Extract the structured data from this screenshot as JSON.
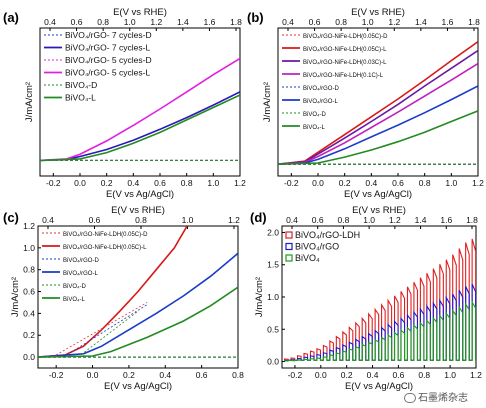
{
  "watermark": "石墨烯杂志",
  "chart_data": [
    {
      "panel": "(a)",
      "type": "line",
      "xlabel": "E(V vs Ag/AgCl)",
      "x2label": "E(V vs RHE)",
      "ylabel": "J/mA/cm²",
      "xlim": [
        -0.3,
        1.2
      ],
      "ylim": [
        -0.2,
        1.7
      ],
      "xticks": [
        -0.2,
        0.0,
        0.2,
        0.4,
        0.6,
        0.8,
        1.0,
        1.2
      ],
      "x2ticks": [
        0.4,
        0.6,
        0.8,
        1.0,
        1.2,
        1.4,
        1.6,
        1.8
      ],
      "legend_position": "top-left",
      "series": [
        {
          "name": "BiVO₄/rGO- 7 cycles-D",
          "color": "#1a3cc8",
          "dash": true,
          "points": [
            [
              -0.3,
              0.0
            ],
            [
              1.2,
              0.0
            ]
          ]
        },
        {
          "name": "BiVO₄/rGO- 7 cycles-L",
          "color": "#2a18b8",
          "dash": false,
          "points": [
            [
              -0.3,
              0.0
            ],
            [
              -0.1,
              0.01
            ],
            [
              0.0,
              0.05
            ],
            [
              0.2,
              0.14
            ],
            [
              0.4,
              0.26
            ],
            [
              0.6,
              0.4
            ],
            [
              0.8,
              0.55
            ],
            [
              1.0,
              0.71
            ],
            [
              1.2,
              0.88
            ]
          ]
        },
        {
          "name": "BiVO₄/rGO- 5 cycles-D",
          "color": "#e020e0",
          "dash": true,
          "points": [
            [
              -0.3,
              0.0
            ],
            [
              1.2,
              0.0
            ]
          ]
        },
        {
          "name": "BiVO₄/rGO- 5 cycles-L",
          "color": "#e020e0",
          "dash": false,
          "points": [
            [
              -0.3,
              0.0
            ],
            [
              -0.1,
              0.02
            ],
            [
              0.0,
              0.08
            ],
            [
              0.2,
              0.25
            ],
            [
              0.4,
              0.45
            ],
            [
              0.6,
              0.66
            ],
            [
              0.8,
              0.88
            ],
            [
              1.0,
              1.1
            ],
            [
              1.2,
              1.31
            ]
          ]
        },
        {
          "name": "BiVO₄-D",
          "color": "#228b22",
          "dash": true,
          "points": [
            [
              -0.3,
              0.0
            ],
            [
              1.2,
              0.0
            ]
          ]
        },
        {
          "name": "BiVO₄-L",
          "color": "#228b22",
          "dash": false,
          "points": [
            [
              -0.3,
              0.0
            ],
            [
              0.0,
              0.02
            ],
            [
              0.2,
              0.1
            ],
            [
              0.4,
              0.22
            ],
            [
              0.6,
              0.36
            ],
            [
              0.8,
              0.52
            ],
            [
              1.0,
              0.68
            ],
            [
              1.2,
              0.84
            ]
          ]
        }
      ]
    },
    {
      "panel": "(b)",
      "type": "line",
      "xlabel": "E(V vs Ag/AgCl)",
      "x2label": "E(V vs RHE)",
      "ylabel": "J/mA/cm²",
      "xlim": [
        -0.3,
        1.2
      ],
      "ylim": [
        -0.2,
        2.3
      ],
      "xticks": [
        -0.2,
        0.0,
        0.2,
        0.4,
        0.6,
        0.8,
        1.0,
        1.2
      ],
      "x2ticks": [
        0.4,
        0.6,
        0.8,
        1.0,
        1.2,
        1.4,
        1.6,
        1.8
      ],
      "legend_position": "top-left",
      "series": [
        {
          "name": "BiVO₄/rGO-NiFe-LDH(0.05C)-D",
          "color": "#e03030",
          "dash": true,
          "points": [
            [
              -0.3,
              0.0
            ],
            [
              1.2,
              0.0
            ]
          ]
        },
        {
          "name": "BiVO₄/rGO-NiFe-LDH(0.05C)-L",
          "color": "#d81818",
          "dash": false,
          "points": [
            [
              -0.3,
              0.0
            ],
            [
              -0.1,
              0.05
            ],
            [
              0.0,
              0.2
            ],
            [
              0.2,
              0.5
            ],
            [
              0.4,
              0.8
            ],
            [
              0.6,
              1.1
            ],
            [
              0.8,
              1.42
            ],
            [
              1.0,
              1.75
            ],
            [
              1.2,
              2.07
            ]
          ]
        },
        {
          "name": "BiVO₄/rGO-NiFe-LDH(0.03C)-L",
          "color": "#6a1aa0",
          "dash": false,
          "points": [
            [
              -0.3,
              0.0
            ],
            [
              -0.1,
              0.04
            ],
            [
              0.0,
              0.17
            ],
            [
              0.2,
              0.44
            ],
            [
              0.4,
              0.72
            ],
            [
              0.6,
              1.01
            ],
            [
              0.8,
              1.32
            ],
            [
              1.0,
              1.62
            ],
            [
              1.2,
              1.92
            ]
          ]
        },
        {
          "name": "BiVO₄/rGO-NiFe-LDH(0.1C)-L",
          "color": "#c020c0",
          "dash": false,
          "points": [
            [
              -0.3,
              0.0
            ],
            [
              -0.1,
              0.03
            ],
            [
              0.0,
              0.13
            ],
            [
              0.2,
              0.36
            ],
            [
              0.4,
              0.62
            ],
            [
              0.6,
              0.88
            ],
            [
              0.8,
              1.15
            ],
            [
              1.0,
              1.42
            ],
            [
              1.2,
              1.7
            ]
          ]
        },
        {
          "name": "BiVO₄/rGO-D",
          "color": "#1a3cc8",
          "dash": true,
          "points": [
            [
              -0.3,
              0.0
            ],
            [
              1.2,
              0.0
            ]
          ]
        },
        {
          "name": "BiVO₄/rGO-L",
          "color": "#1a3cc8",
          "dash": false,
          "points": [
            [
              -0.3,
              0.0
            ],
            [
              -0.1,
              0.02
            ],
            [
              0.0,
              0.08
            ],
            [
              0.2,
              0.26
            ],
            [
              0.4,
              0.46
            ],
            [
              0.6,
              0.66
            ],
            [
              0.8,
              0.87
            ],
            [
              1.0,
              1.09
            ],
            [
              1.2,
              1.32
            ]
          ]
        },
        {
          "name": "BiVO₄-D",
          "color": "#228b22",
          "dash": true,
          "points": [
            [
              -0.3,
              0.0
            ],
            [
              1.2,
              0.0
            ]
          ]
        },
        {
          "name": "BiVO₄-L",
          "color": "#228b22",
          "dash": false,
          "points": [
            [
              -0.3,
              0.0
            ],
            [
              0.0,
              0.02
            ],
            [
              0.2,
              0.12
            ],
            [
              0.4,
              0.24
            ],
            [
              0.6,
              0.38
            ],
            [
              0.8,
              0.54
            ],
            [
              1.0,
              0.72
            ],
            [
              1.2,
              0.9
            ]
          ]
        }
      ]
    },
    {
      "panel": "(c)",
      "type": "line",
      "xlabel": "E(V vs Ag/AgCl)",
      "x2label": "E(V vs RHE)",
      "ylabel": "J/mA/cm²",
      "xlim": [
        -0.3,
        0.8
      ],
      "ylim": [
        -0.1,
        1.2
      ],
      "xticks": [
        -0.2,
        0.0,
        0.2,
        0.4,
        0.6,
        0.8
      ],
      "x2ticks": [
        0.4,
        0.6,
        0.8,
        1.0,
        1.2
      ],
      "yticks": [
        0.0,
        0.2,
        0.4,
        0.6,
        0.8,
        1.0,
        1.2
      ],
      "legend_position": "top-left",
      "series": [
        {
          "name": "BiVO₄/rGO-NiFe-LDH(0.05C)-D",
          "color": "#e03030",
          "dash": true,
          "points": [
            [
              -0.3,
              0.0
            ],
            [
              0.8,
              0.0
            ]
          ]
        },
        {
          "name": "BiVO₄/rGO-NiFe-LDH(0.05C)-L",
          "color": "#d81818",
          "dash": false,
          "points": [
            [
              -0.3,
              0.0
            ],
            [
              -0.15,
              0.02
            ],
            [
              -0.05,
              0.1
            ],
            [
              0.05,
              0.25
            ],
            [
              0.15,
              0.42
            ],
            [
              0.25,
              0.6
            ],
            [
              0.35,
              0.8
            ],
            [
              0.45,
              1.0
            ],
            [
              0.52,
              1.2
            ]
          ]
        },
        {
          "name": "BiVO₄/rGO-D",
          "color": "#1a3cc8",
          "dash": true,
          "points": [
            [
              -0.3,
              0.0
            ],
            [
              0.8,
              0.0
            ]
          ]
        },
        {
          "name": "BiVO₄/rGO-L",
          "color": "#1a3cc8",
          "dash": false,
          "points": [
            [
              -0.3,
              0.0
            ],
            [
              -0.05,
              0.03
            ],
            [
              0.05,
              0.1
            ],
            [
              0.2,
              0.25
            ],
            [
              0.35,
              0.4
            ],
            [
              0.5,
              0.56
            ],
            [
              0.65,
              0.74
            ],
            [
              0.8,
              0.95
            ]
          ]
        },
        {
          "name": "BiVO₄-D",
          "color": "#228b22",
          "dash": true,
          "points": [
            [
              -0.3,
              0.0
            ],
            [
              0.8,
              0.0
            ]
          ]
        },
        {
          "name": "BiVO₄-L",
          "color": "#228b22",
          "dash": false,
          "points": [
            [
              -0.3,
              0.0
            ],
            [
              0.0,
              0.01
            ],
            [
              0.1,
              0.05
            ],
            [
              0.3,
              0.18
            ],
            [
              0.5,
              0.33
            ],
            [
              0.65,
              0.47
            ],
            [
              0.8,
              0.64
            ]
          ]
        }
      ],
      "annotation_lines": [
        {
          "color": "#e03030",
          "from": [
            -0.22,
            0.0
          ],
          "to": [
            0.3,
            0.5
          ]
        },
        {
          "color": "#1a3cc8",
          "from": [
            -0.16,
            0.0
          ],
          "to": [
            0.3,
            0.48
          ]
        },
        {
          "color": "#228b22",
          "from": [
            -0.08,
            0.0
          ],
          "to": [
            0.25,
            0.42
          ]
        }
      ]
    },
    {
      "panel": "(d)",
      "type": "line",
      "xlabel": "E(V vs Ag/AgCl)",
      "x2label": "E(V vs RHE)",
      "ylabel": "J/mA/cm²",
      "xlim": [
        -0.3,
        1.2
      ],
      "ylim": [
        -0.1,
        2.1
      ],
      "xticks": [
        -0.2,
        0.0,
        0.2,
        0.4,
        0.6,
        0.8,
        1.0,
        1.2
      ],
      "x2ticks": [
        0.4,
        0.6,
        0.8,
        1.0,
        1.2,
        1.4,
        1.6,
        1.8
      ],
      "yticks": [
        0.0,
        0.5,
        1.0,
        1.5,
        2.0
      ],
      "legend_position": "top-left",
      "chopped_light": true,
      "series": [
        {
          "name": "BiVO₄/rGO-LDH",
          "color": "#e02020",
          "envelope": [
            [
              -0.25,
              0.04
            ],
            [
              0.0,
              0.22
            ],
            [
              0.2,
              0.5
            ],
            [
              0.4,
              0.78
            ],
            [
              0.6,
              1.06
            ],
            [
              0.8,
              1.34
            ],
            [
              1.0,
              1.62
            ],
            [
              1.15,
              1.9
            ]
          ]
        },
        {
          "name": "BiVO₄/rGO",
          "color": "#1a1ad0",
          "envelope": [
            [
              -0.25,
              0.02
            ],
            [
              0.0,
              0.12
            ],
            [
              0.2,
              0.28
            ],
            [
              0.4,
              0.46
            ],
            [
              0.6,
              0.65
            ],
            [
              0.8,
              0.84
            ],
            [
              1.0,
              1.02
            ],
            [
              1.15,
              1.2
            ]
          ]
        },
        {
          "name": "BiVO₄",
          "color": "#18a018",
          "envelope": [
            [
              -0.25,
              0.01
            ],
            [
              0.0,
              0.06
            ],
            [
              0.2,
              0.18
            ],
            [
              0.4,
              0.32
            ],
            [
              0.6,
              0.47
            ],
            [
              0.8,
              0.62
            ],
            [
              1.0,
              0.77
            ],
            [
              1.15,
              0.92
            ]
          ]
        }
      ]
    }
  ]
}
